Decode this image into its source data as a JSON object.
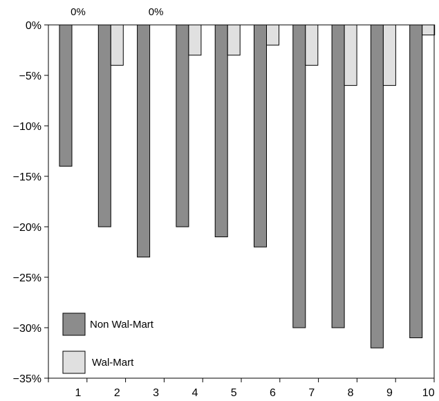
{
  "chart_data": {
    "type": "bar",
    "categories": [
      "1",
      "2",
      "3",
      "4",
      "5",
      "6",
      "7",
      "8",
      "9",
      "10"
    ],
    "series": [
      {
        "name": "Non Wal-Mart",
        "values": [
          -14,
          -20,
          -23,
          -20,
          -21,
          -22,
          -30,
          -30,
          -32,
          -31
        ],
        "color": "#8c8c8c"
      },
      {
        "name": "Wal-Mart",
        "values": [
          0,
          -4,
          0,
          -3,
          -3,
          -2,
          -4,
          -6,
          -6,
          -1
        ],
        "color": "#e0e0e0"
      }
    ],
    "ylim": [
      -35,
      0
    ],
    "yticks": [
      0,
      -5,
      -10,
      -15,
      -20,
      -25,
      -30,
      -35
    ],
    "ytick_labels": [
      "0%",
      "−5%",
      "−10%",
      "−15%",
      "−20%",
      "−25%",
      "−30%",
      "−35%"
    ],
    "data_labels": [
      {
        "category": "1",
        "text": "0%"
      },
      {
        "category": "3",
        "text": "0%"
      }
    ],
    "legend": {
      "placement": "bottom-left",
      "entries": [
        "Non Wal-Mart",
        "Wal-Mart"
      ]
    },
    "grid": false,
    "title": "",
    "xlabel": "",
    "ylabel": ""
  }
}
